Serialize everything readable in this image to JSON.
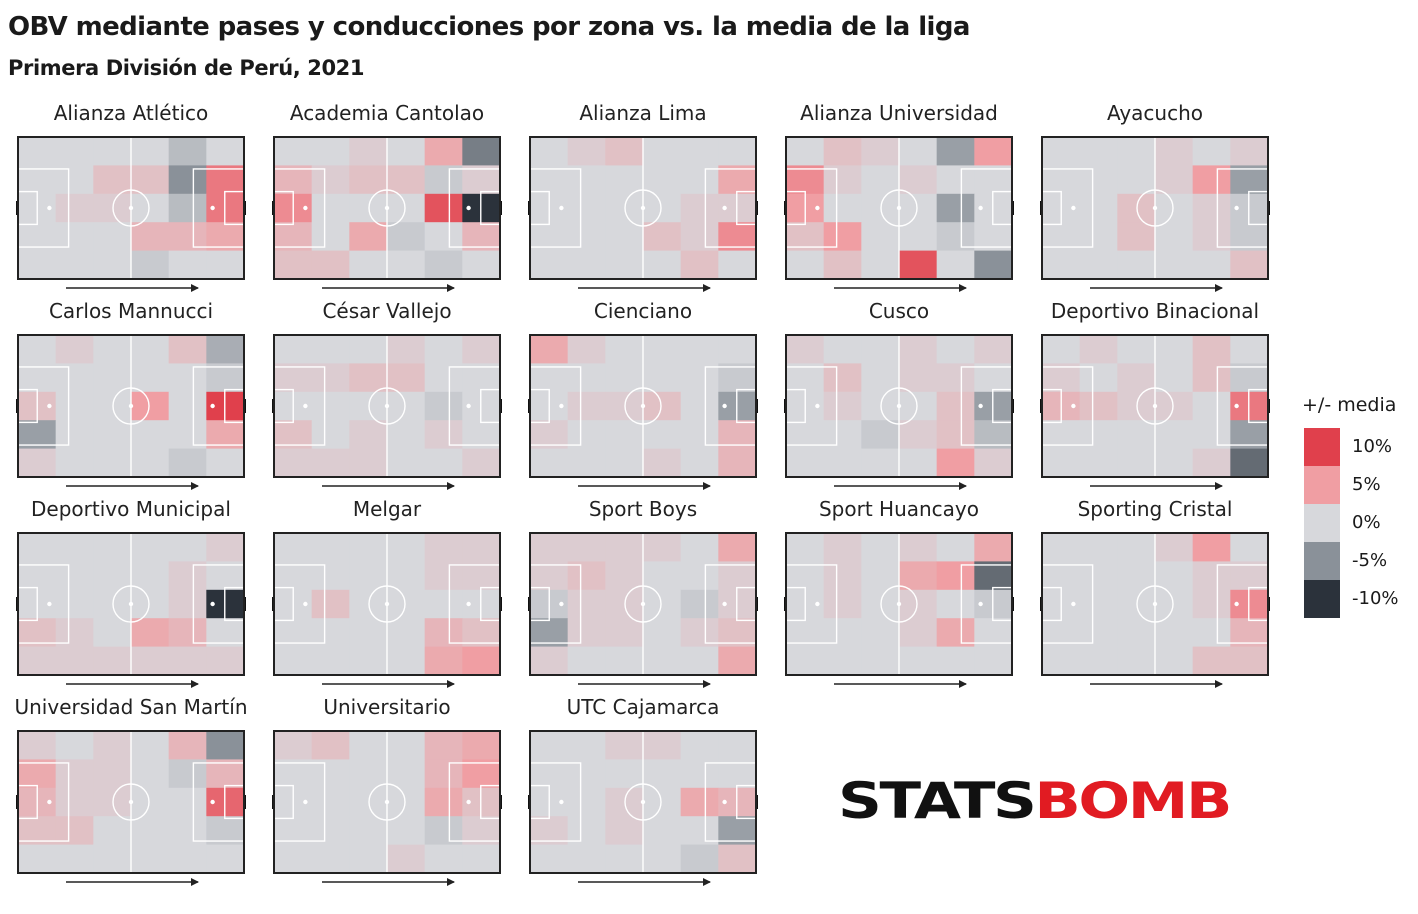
{
  "title": "OBV mediante pases y conducciones por zona vs. la media de la liga",
  "subtitle": "Primera División de Perú, 2021",
  "legend": {
    "title": "+/- media",
    "items": [
      {
        "label": "10%",
        "color": "#e0404c"
      },
      {
        "label": "5%",
        "color": "#f09ea3"
      },
      {
        "label": "0%",
        "color": "#d7d8dc"
      },
      {
        "label": "-5%",
        "color": "#8a9199"
      },
      {
        "label": "-10%",
        "color": "#2b323b"
      }
    ]
  },
  "logo_text": "STATSBOMB",
  "colors": {
    "pitch_lines": "#ffffff",
    "border": "#222222",
    "arrow": "#222222"
  },
  "chart_data": {
    "type": "heatmap",
    "value_unit": "percent difference vs league average",
    "scale": [
      -10,
      10
    ],
    "grid": "6 columns x 5 rows per team (attacking direction left to right)",
    "teams": [
      {
        "name": "Alianza Atlético",
        "values": [
          [
            0,
            0,
            0,
            0,
            -2,
            0
          ],
          [
            0,
            0,
            2,
            2,
            -5,
            7
          ],
          [
            0,
            1,
            1,
            0,
            -2,
            7
          ],
          [
            0,
            0,
            0,
            3,
            3,
            4
          ],
          [
            0,
            0,
            0,
            -1,
            0,
            0
          ]
        ]
      },
      {
        "name": "Academia Cantolao",
        "values": [
          [
            0,
            0,
            1,
            0,
            4,
            -6
          ],
          [
            3,
            1,
            2,
            2,
            -1,
            1
          ],
          [
            6,
            0,
            0,
            0,
            9,
            -10
          ],
          [
            3,
            0,
            4,
            -1,
            0,
            3
          ],
          [
            2,
            2,
            0,
            0,
            -1,
            0
          ]
        ]
      },
      {
        "name": "Alianza Lima",
        "values": [
          [
            0,
            1,
            2,
            0,
            0,
            0
          ],
          [
            0,
            0,
            0,
            0,
            0,
            4
          ],
          [
            0,
            0,
            0,
            0,
            1,
            1
          ],
          [
            0,
            0,
            0,
            2,
            1,
            6
          ],
          [
            0,
            0,
            0,
            0,
            2,
            0
          ]
        ]
      },
      {
        "name": "Alianza Universidad",
        "values": [
          [
            0,
            2,
            1,
            0,
            -4,
            5
          ],
          [
            6,
            1,
            0,
            1,
            0,
            0
          ],
          [
            5,
            0,
            0,
            0,
            -4,
            0
          ],
          [
            2,
            5,
            0,
            0,
            -1,
            0
          ],
          [
            0,
            2,
            0,
            9,
            0,
            -5
          ]
        ]
      },
      {
        "name": "Ayacucho",
        "values": [
          [
            0,
            0,
            0,
            1,
            0,
            1
          ],
          [
            0,
            0,
            0,
            1,
            5,
            -4
          ],
          [
            0,
            0,
            2,
            0,
            1,
            -1
          ],
          [
            0,
            0,
            2,
            0,
            1,
            -1
          ],
          [
            0,
            0,
            0,
            0,
            0,
            2
          ]
        ]
      },
      {
        "name": "Carlos Mannucci",
        "values": [
          [
            0,
            1,
            0,
            0,
            2,
            -3
          ],
          [
            0,
            0,
            0,
            0,
            0,
            -1
          ],
          [
            2,
            0,
            0,
            5,
            0,
            10
          ],
          [
            -4,
            0,
            0,
            0,
            0,
            4
          ],
          [
            1,
            0,
            0,
            0,
            -1,
            0
          ]
        ]
      },
      {
        "name": "César Vallejo",
        "values": [
          [
            0,
            0,
            0,
            1,
            0,
            1
          ],
          [
            1,
            1,
            2,
            2,
            0,
            0
          ],
          [
            0,
            0,
            0,
            0,
            -1,
            0
          ],
          [
            2,
            0,
            1,
            0,
            1,
            0
          ],
          [
            1,
            1,
            1,
            0,
            0,
            1
          ]
        ]
      },
      {
        "name": "Cienciano",
        "values": [
          [
            4,
            1,
            0,
            0,
            0,
            0
          ],
          [
            0,
            0,
            0,
            0,
            0,
            -1
          ],
          [
            0,
            1,
            1,
            2,
            0,
            -4
          ],
          [
            1,
            0,
            0,
            0,
            0,
            3
          ],
          [
            0,
            0,
            0,
            1,
            0,
            3
          ]
        ]
      },
      {
        "name": "Cusco",
        "values": [
          [
            1,
            0,
            0,
            1,
            0,
            1
          ],
          [
            0,
            2,
            0,
            1,
            1,
            0
          ],
          [
            0,
            1,
            0,
            0,
            2,
            -4
          ],
          [
            0,
            0,
            -1,
            1,
            2,
            -2
          ],
          [
            0,
            0,
            0,
            0,
            5,
            1
          ]
        ]
      },
      {
        "name": "Deportivo Binacional",
        "values": [
          [
            0,
            1,
            0,
            0,
            2,
            0
          ],
          [
            1,
            0,
            1,
            0,
            2,
            -1
          ],
          [
            3,
            2,
            1,
            1,
            0,
            7
          ],
          [
            0,
            0,
            0,
            0,
            0,
            -4
          ],
          [
            0,
            0,
            0,
            0,
            1,
            -7
          ]
        ]
      },
      {
        "name": "Deportivo Municipal",
        "values": [
          [
            0,
            0,
            0,
            0,
            0,
            1
          ],
          [
            0,
            0,
            0,
            0,
            1,
            0
          ],
          [
            0,
            0,
            0,
            0,
            1,
            -10
          ],
          [
            2,
            1,
            0,
            4,
            3,
            0
          ],
          [
            1,
            1,
            1,
            1,
            1,
            1
          ]
        ]
      },
      {
        "name": "Melgar",
        "values": [
          [
            0,
            0,
            0,
            0,
            1,
            1
          ],
          [
            0,
            0,
            0,
            0,
            1,
            1
          ],
          [
            0,
            2,
            0,
            0,
            0,
            0
          ],
          [
            0,
            0,
            0,
            0,
            3,
            2
          ],
          [
            0,
            0,
            0,
            0,
            4,
            5
          ]
        ]
      },
      {
        "name": "Sport Boys",
        "values": [
          [
            1,
            1,
            1,
            1,
            0,
            4
          ],
          [
            1,
            2,
            1,
            0,
            0,
            1
          ],
          [
            -1,
            1,
            1,
            0,
            -1,
            1
          ],
          [
            -4,
            1,
            1,
            0,
            1,
            2
          ],
          [
            1,
            0,
            0,
            0,
            0,
            4
          ]
        ]
      },
      {
        "name": "Sport Huancayo",
        "values": [
          [
            0,
            1,
            0,
            1,
            0,
            4
          ],
          [
            0,
            1,
            0,
            4,
            5,
            -7
          ],
          [
            0,
            1,
            0,
            1,
            0,
            -1
          ],
          [
            0,
            0,
            0,
            1,
            4,
            0
          ],
          [
            0,
            0,
            0,
            0,
            0,
            0
          ]
        ]
      },
      {
        "name": "Sporting Cristal",
        "values": [
          [
            0,
            0,
            0,
            1,
            5,
            0
          ],
          [
            0,
            0,
            0,
            0,
            1,
            1
          ],
          [
            0,
            0,
            0,
            0,
            1,
            6
          ],
          [
            0,
            0,
            0,
            0,
            0,
            3
          ],
          [
            0,
            0,
            0,
            0,
            2,
            2
          ]
        ]
      },
      {
        "name": "Universidad San Martín",
        "values": [
          [
            1,
            0,
            1,
            0,
            3,
            -5
          ],
          [
            4,
            1,
            1,
            0,
            -1,
            3
          ],
          [
            3,
            1,
            1,
            0,
            0,
            8
          ],
          [
            2,
            2,
            0,
            0,
            0,
            -1
          ],
          [
            0,
            0,
            0,
            0,
            0,
            0
          ]
        ]
      },
      {
        "name": "Universitario",
        "values": [
          [
            1,
            2,
            0,
            0,
            3,
            4
          ],
          [
            0,
            0,
            0,
            0,
            3,
            5
          ],
          [
            0,
            0,
            0,
            0,
            4,
            2
          ],
          [
            0,
            0,
            0,
            0,
            -1,
            1
          ],
          [
            0,
            0,
            0,
            1,
            0,
            0
          ]
        ]
      },
      {
        "name": "UTC Cajamarca",
        "values": [
          [
            0,
            0,
            1,
            1,
            0,
            0
          ],
          [
            0,
            0,
            0,
            0,
            0,
            0
          ],
          [
            0,
            0,
            1,
            0,
            4,
            3
          ],
          [
            1,
            0,
            1,
            0,
            0,
            -4
          ],
          [
            0,
            0,
            0,
            0,
            -1,
            2
          ]
        ]
      }
    ]
  }
}
